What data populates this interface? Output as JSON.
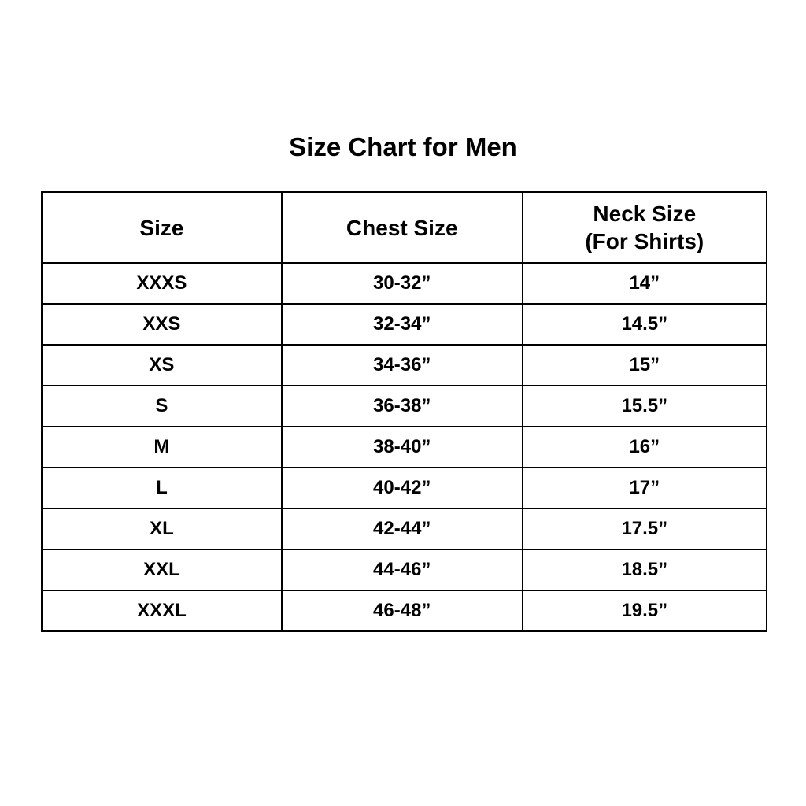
{
  "title": "Size Chart for Men",
  "table": {
    "header_size": "Size",
    "header_chest": "Chest Size",
    "header_neck_line1": "Neck Size",
    "header_neck_line2": "(For Shirts)"
  },
  "chart_data": {
    "type": "table",
    "title": "Size Chart for Men",
    "columns": [
      "Size",
      "Chest Size",
      "Neck Size (For Shirts)"
    ],
    "rows": [
      [
        "XXXS",
        "30-32”",
        "14”"
      ],
      [
        "XXS",
        "32-34”",
        "14.5”"
      ],
      [
        "XS",
        "34-36”",
        "15”"
      ],
      [
        "S",
        "36-38”",
        "15.5”"
      ],
      [
        "M",
        "38-40”",
        "16”"
      ],
      [
        "L",
        "40-42”",
        "17”"
      ],
      [
        "XL",
        "42-44”",
        "17.5”"
      ],
      [
        "XXL",
        "44-46”",
        "18.5”"
      ],
      [
        "XXXL",
        "46-48”",
        "19.5”"
      ]
    ],
    "layout": {
      "border_color": "#000000",
      "background": "#ffffff",
      "text_color": "#000000",
      "columns_count": 3,
      "rows_count": 9
    }
  }
}
